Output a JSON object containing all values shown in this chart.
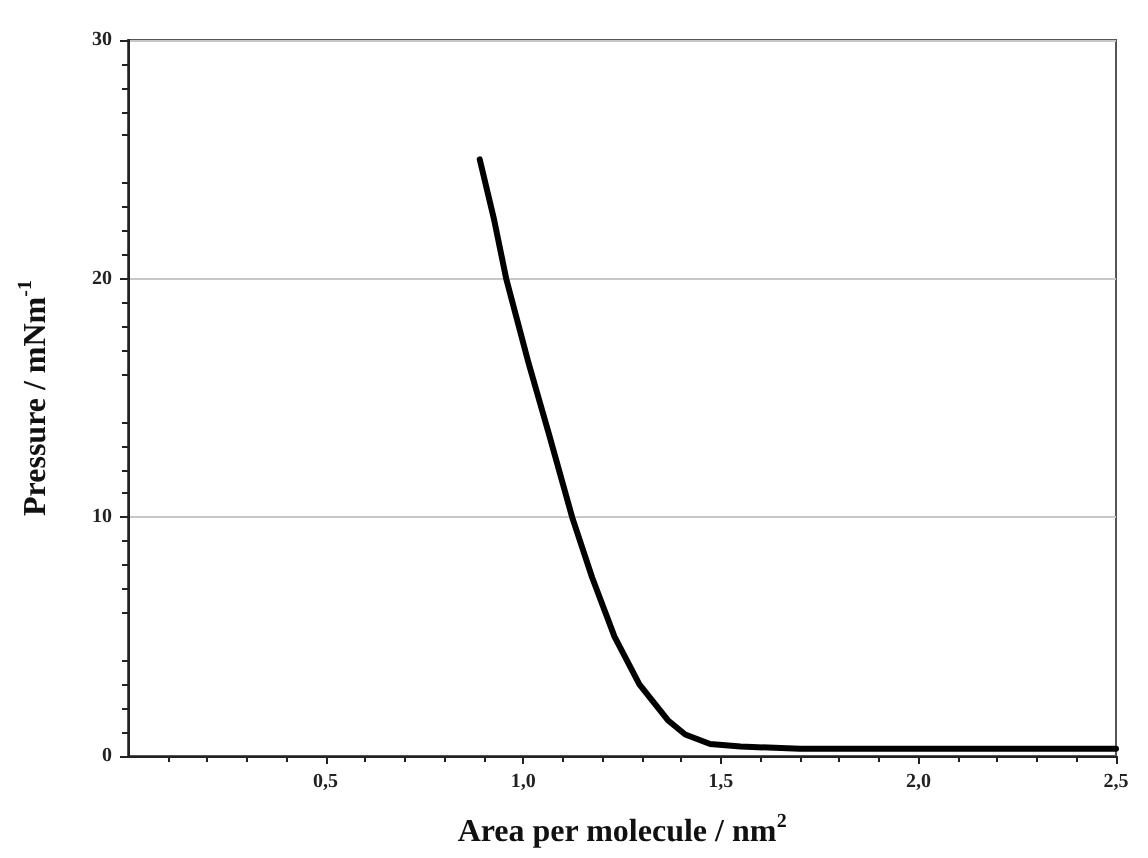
{
  "chart_data": {
    "type": "line",
    "xlabel": "Area per molecule / nm$^{2}$",
    "ylabel": "Pressure / mNm$^{-1}$",
    "x": [
      0.89,
      0.926,
      0.957,
      1.013,
      1.065,
      1.124,
      1.174,
      1.231,
      1.294,
      1.366,
      1.41,
      1.473,
      1.55,
      1.7,
      2.0,
      2.3,
      2.5
    ],
    "series": [
      {
        "color": "#000000",
        "values": [
          25,
          22.5,
          20,
          16.5,
          13.5,
          10,
          7.5,
          5,
          3,
          1.5,
          0.9,
          0.5,
          0.4,
          0.3,
          0.3,
          0.3,
          0.3
        ]
      }
    ],
    "xlim": [
      0,
      2.5
    ],
    "xticks": [
      {
        "value": 0.5,
        "label": "0,5"
      },
      {
        "value": 1.0,
        "label": "1,0"
      },
      {
        "value": 1.5,
        "label": "1,5"
      },
      {
        "value": 2.0,
        "label": "2,0"
      },
      {
        "value": 2.5,
        "label": "2,5"
      }
    ],
    "ylim": [
      0,
      30
    ],
    "yticks": [
      0,
      10,
      20,
      30
    ],
    "grid": "y",
    "marker": "none",
    "line_style": "solid"
  }
}
